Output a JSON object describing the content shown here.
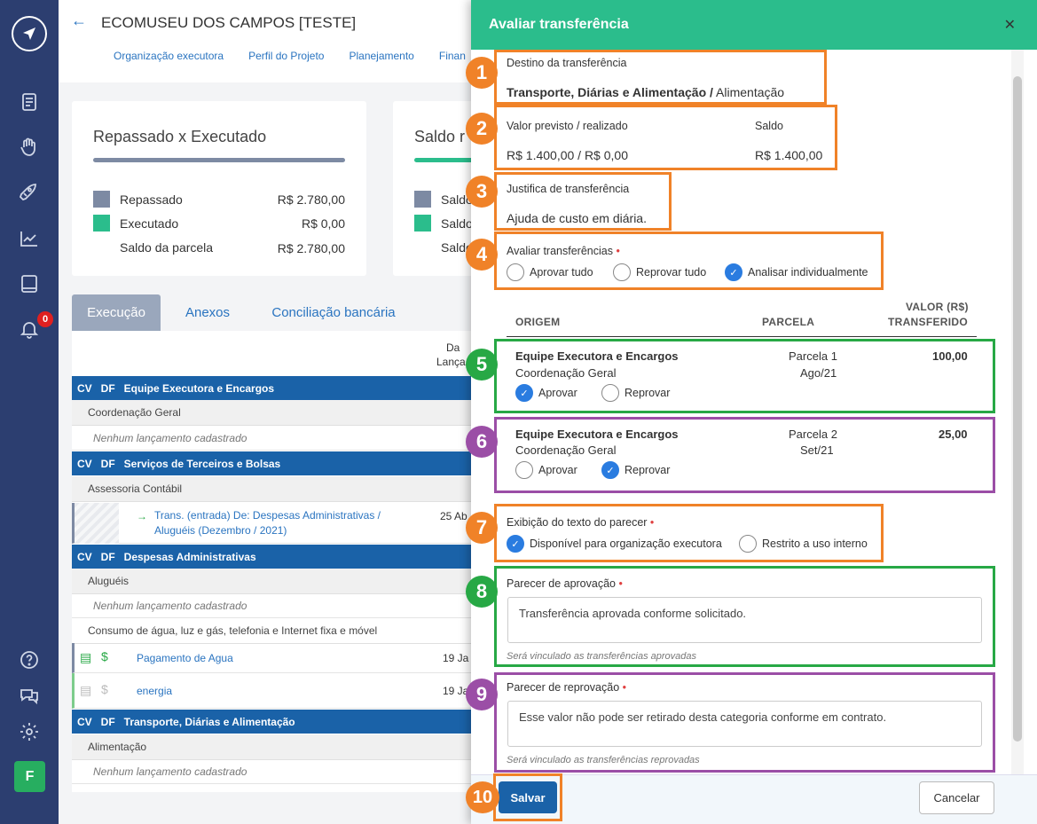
{
  "header": {
    "title": "ECOMUSEU DOS CAMPOS [TESTE]",
    "tabs": [
      "Organização executora",
      "Perfil do Projeto",
      "Planejamento",
      "Finan"
    ]
  },
  "cards": {
    "c1": {
      "title": "Repassado x Executado",
      "rows": [
        {
          "label": "Repassado",
          "value": "R$ 2.780,00"
        },
        {
          "label": "Executado",
          "value": "R$ 0,00"
        },
        {
          "label": "Saldo da parcela",
          "value": "R$ 2.780,00"
        }
      ]
    },
    "c2": {
      "title": "Saldo r",
      "rows": [
        "Saldo",
        "Saldo",
        "Saldo"
      ]
    }
  },
  "tabs": [
    "Execução",
    "Anexos",
    "Conciliação bancária"
  ],
  "table": {
    "col_header": [
      "Da",
      "Lança"
    ],
    "groups": [
      {
        "cv": "CV",
        "df": "DF",
        "name": "Equipe Executora e Encargos"
      },
      {
        "cv": "CV",
        "df": "DF",
        "name": "Serviços de Terceiros e Bolsas"
      },
      {
        "cv": "CV",
        "df": "DF",
        "name": "Despesas Administrativas"
      },
      {
        "cv": "CV",
        "df": "DF",
        "name": "Transporte, Diárias e Alimentação"
      }
    ],
    "subs": [
      "Coordenação Geral",
      "Assessoria Contábil",
      "Aluguéis",
      "Consumo de água, luz e gás, telefonia e Internet fixa e móvel",
      "Alimentação"
    ],
    "none": "Nenhum lançamento cadastrado",
    "transfer": {
      "l1": "Trans. (entrada)   De: Despesas Administrativas /",
      "l2": "Aluguéis (Dezembro / 2021)",
      "date": "25 Ab"
    },
    "entries": [
      {
        "name": "Pagamento de Agua",
        "date": "19 Ja"
      },
      {
        "name": "energia",
        "date": "19 Ja"
      }
    ]
  },
  "badge": "0",
  "avatar": "F",
  "modal": {
    "title": "Avaliar transferência",
    "destino_label": "Destino da transferência",
    "destino_bold": "Transporte, Diárias e Alimentação /",
    "destino_rest": "Alimentação",
    "valor_label": "Valor previsto / realizado",
    "valor": "R$ 1.400,00 / R$ 0,00",
    "saldo_label": "Saldo",
    "saldo": "R$ 1.400,00",
    "just_label": "Justifica de transferência",
    "just": "Ajuda de custo em diária.",
    "avaliar_label": "Avaliar transferências",
    "avaliar_opts": [
      "Aprovar tudo",
      "Reprovar tudo",
      "Analisar individualmente"
    ],
    "th": {
      "origem": "ORIGEM",
      "parcela": "PARCELA",
      "valor1": "VALOR (R$)",
      "valor2": "TRANSFERIDO"
    },
    "items": [
      {
        "name": "Equipe Executora e Encargos",
        "sub": "Coordenação Geral",
        "parcela": "Parcela 1",
        "mes": "Ago/21",
        "valor": "100,00",
        "aprovar": "Aprovar",
        "reprovar": "Reprovar"
      },
      {
        "name": "Equipe Executora e Encargos",
        "sub": "Coordenação Geral",
        "parcela": "Parcela 2",
        "mes": "Set/21",
        "valor": "25,00",
        "aprovar": "Aprovar",
        "reprovar": "Reprovar"
      }
    ],
    "exib_label": "Exibição do texto do parecer",
    "exib_opts": [
      "Disponível para organização executora",
      "Restrito a uso interno"
    ],
    "apr_label": "Parecer de aprovação",
    "apr_text": "Transferência aprovada conforme solicitado.",
    "apr_hint": "Será vinculado as transferências aprovadas",
    "rep_label": "Parecer de reprovação",
    "rep_text": "Esse valor não pode ser retirado desta categoria conforme em contrato.",
    "rep_hint": "Será vinculado as transferências reprovadas",
    "save": "Salvar",
    "cancel": "Cancelar"
  },
  "markers": [
    "1",
    "2",
    "3",
    "4",
    "5",
    "6",
    "7",
    "8",
    "9",
    "10"
  ]
}
